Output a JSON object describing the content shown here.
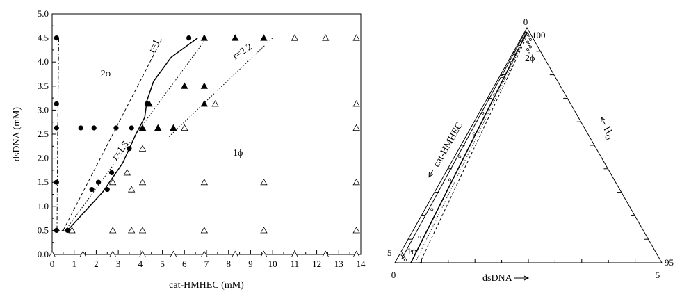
{
  "chart_data": [
    {
      "type": "scatter",
      "title": "",
      "xlabel": "cat-HMHEC (mM)",
      "ylabel": "dsDNA (mM)",
      "xlim": [
        0,
        14
      ],
      "ylim": [
        0,
        5
      ],
      "xticks": [
        "0",
        "1",
        "2",
        "3",
        "4",
        "5",
        "6",
        "7",
        "8",
        "9",
        "10",
        "11",
        "12",
        "13",
        "14"
      ],
      "yticks": [
        "0.0",
        "0.5",
        "1.0",
        "1.5",
        "2.0",
        "2.5",
        "3.0",
        "3.5",
        "4.0",
        "4.5",
        "5.0"
      ],
      "series": [
        {
          "marker": "filled-circle",
          "points": [
            [
              0.2,
              4.5
            ],
            [
              0.2,
              3.13
            ],
            [
              0.2,
              2.63
            ],
            [
              0.2,
              1.5
            ],
            [
              0.2,
              0.5
            ],
            [
              0.7,
              0.5
            ],
            [
              1.3,
              2.63
            ],
            [
              1.9,
              2.63
            ],
            [
              2.9,
              2.63
            ],
            [
              3.6,
              2.63
            ],
            [
              2.1,
              1.5
            ],
            [
              1.8,
              1.35
            ],
            [
              2.7,
              1.7
            ],
            [
              2.5,
              1.35
            ],
            [
              3.5,
              2.2
            ],
            [
              4.3,
              3.13
            ],
            [
              6.2,
              4.5
            ]
          ]
        },
        {
          "marker": "filled-triangle",
          "points": [
            [
              4.4,
              3.13
            ],
            [
              4.1,
              2.63
            ],
            [
              4.8,
              2.63
            ],
            [
              5.5,
              2.63
            ],
            [
              6.0,
              3.5
            ],
            [
              6.9,
              3.5
            ],
            [
              6.9,
              3.13
            ],
            [
              6.9,
              4.5
            ],
            [
              8.3,
              4.5
            ],
            [
              9.6,
              4.5
            ]
          ]
        },
        {
          "marker": "open-triangle",
          "points": [
            [
              0.9,
              0.5
            ],
            [
              2.75,
              0.5
            ],
            [
              3.6,
              0.5
            ],
            [
              4.1,
              0.5
            ],
            [
              6.9,
              0.5
            ],
            [
              9.6,
              0.5
            ],
            [
              13.8,
              0.5
            ],
            [
              2.75,
              1.5
            ],
            [
              3.6,
              1.35
            ],
            [
              3.4,
              1.7
            ],
            [
              4.1,
              1.5
            ],
            [
              6.9,
              1.5
            ],
            [
              9.6,
              1.5
            ],
            [
              13.8,
              1.5
            ],
            [
              4.1,
              2.2
            ],
            [
              6.0,
              2.63
            ],
            [
              13.8,
              2.63
            ],
            [
              7.4,
              3.13
            ],
            [
              13.8,
              3.13
            ],
            [
              11.0,
              4.5
            ],
            [
              12.4,
              4.5
            ],
            [
              13.8,
              4.5
            ],
            [
              0.0,
              0.0
            ],
            [
              1.4,
              0.0
            ],
            [
              2.75,
              0.0
            ],
            [
              4.1,
              0.0
            ],
            [
              5.5,
              0.0
            ],
            [
              6.9,
              0.0
            ],
            [
              8.3,
              0.0
            ],
            [
              9.6,
              0.0
            ],
            [
              11.0,
              0.0
            ],
            [
              12.4,
              0.0
            ],
            [
              13.8,
              0.0
            ]
          ]
        }
      ],
      "curves": [
        {
          "style": "solid",
          "points": [
            [
              0.7,
              0.5
            ],
            [
              2.3,
              1.3
            ],
            [
              3.2,
              1.9
            ],
            [
              3.8,
              2.5
            ],
            [
              4.2,
              2.85
            ],
            [
              4.3,
              3.2
            ],
            [
              4.6,
              3.6
            ],
            [
              5.4,
              4.1
            ],
            [
              6.6,
              4.5
            ]
          ]
        },
        {
          "style": "dash-dot",
          "points": [
            [
              0.3,
              4.5
            ],
            [
              0.25,
              2.5
            ],
            [
              0.22,
              0.5
            ],
            [
              0.55,
              0.5
            ]
          ]
        },
        {
          "style": "dashed",
          "label": "r=1",
          "points": [
            [
              0.5,
              0.5
            ],
            [
              5.0,
              4.5
            ]
          ]
        },
        {
          "style": "dotted",
          "label": "r=1.5",
          "points": [
            [
              0.6,
              0.5
            ],
            [
              7.0,
              4.5
            ]
          ]
        },
        {
          "style": "dotted",
          "label": "r=2.2",
          "points": [
            [
              5.3,
              2.45
            ],
            [
              10.0,
              4.5
            ]
          ]
        }
      ],
      "annotations": [
        {
          "text": "2ϕ",
          "x": 2.2,
          "y": 3.7
        },
        {
          "text": "1ϕ",
          "x": 8.2,
          "y": 2.05
        },
        {
          "text": "r=1",
          "x": 4.6,
          "y": 4.18
        },
        {
          "text": "r=1.5",
          "x": 2.9,
          "y": 1.95
        },
        {
          "text": "r=2.2",
          "x": 8.3,
          "y": 4.05
        }
      ]
    },
    {
      "type": "ternary",
      "axes": {
        "bottom_label": "dsDNA",
        "left_label": "cat-HMHEC",
        "right_label": "H2O",
        "right_label_main": "H",
        "right_label_sub": "O",
        "corner_labels": {
          "top": "0",
          "top_right": "100",
          "bottom_left": "0",
          "bottom_right": "5",
          "right_end": "95",
          "left_end": "5"
        }
      },
      "annotations": [
        {
          "text": "2ϕ",
          "where": "near top vertex"
        },
        {
          "text": "1ϕ",
          "where": "near bottom-left vertex"
        }
      ]
    }
  ]
}
